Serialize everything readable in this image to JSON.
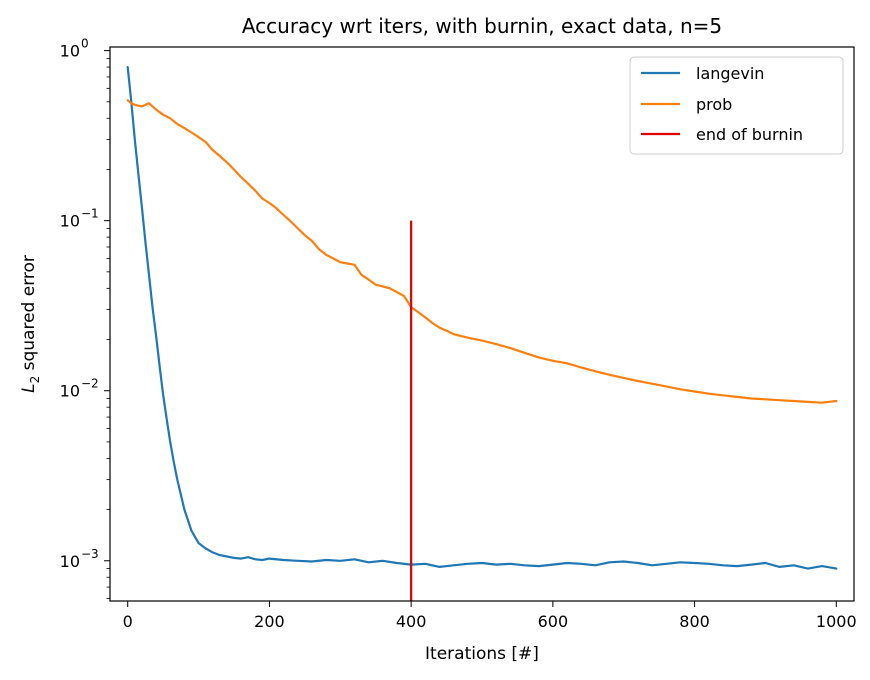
{
  "chart_data": {
    "type": "line",
    "title": "Accuracy wrt iters, with burnin, exact data, n=5",
    "xlabel": "Iterations [#]",
    "ylabel": "L2 squared error",
    "ylabel_main": "L",
    "ylabel_sub": "2",
    "ylabel_rest": " squared error",
    "yscale": "log",
    "xlim": [
      -25,
      1025
    ],
    "ylim": [
      0.00058,
      1.05
    ],
    "xticks": [
      0,
      200,
      400,
      600,
      800,
      1000
    ],
    "xtick_labels": [
      "0",
      "200",
      "400",
      "600",
      "800",
      "1000"
    ],
    "yticks": [
      0.001,
      0.01,
      0.1,
      1
    ],
    "ytick_labels_base": [
      "10",
      "10",
      "10",
      "10"
    ],
    "ytick_labels_exp": [
      "−3",
      "−2",
      "−1",
      "0"
    ],
    "legend_position": "top-right",
    "grid": false,
    "series": [
      {
        "name": "langevin",
        "color": "#1f77b4",
        "x": [
          0,
          5,
          10,
          15,
          20,
          25,
          30,
          35,
          40,
          45,
          50,
          55,
          60,
          65,
          70,
          80,
          90,
          100,
          110,
          120,
          130,
          140,
          150,
          160,
          170,
          180,
          190,
          200,
          220,
          240,
          260,
          280,
          300,
          320,
          340,
          360,
          380,
          400,
          420,
          440,
          460,
          480,
          500,
          520,
          540,
          560,
          580,
          600,
          620,
          640,
          660,
          680,
          700,
          720,
          740,
          760,
          780,
          800,
          820,
          840,
          860,
          880,
          900,
          920,
          940,
          960,
          980,
          1000
        ],
        "y": [
          0.8,
          0.5,
          0.3,
          0.19,
          0.12,
          0.075,
          0.048,
          0.031,
          0.021,
          0.014,
          0.0095,
          0.0068,
          0.005,
          0.0038,
          0.003,
          0.002,
          0.0015,
          0.00127,
          0.00118,
          0.00112,
          0.00108,
          0.00106,
          0.00104,
          0.00103,
          0.00105,
          0.00102,
          0.00101,
          0.00103,
          0.00101,
          0.001,
          0.00099,
          0.00101,
          0.001,
          0.00102,
          0.00098,
          0.001,
          0.00097,
          0.00095,
          0.00096,
          0.00092,
          0.00094,
          0.00096,
          0.00097,
          0.00095,
          0.00096,
          0.00094,
          0.00093,
          0.00095,
          0.00097,
          0.00096,
          0.00094,
          0.00098,
          0.00099,
          0.00097,
          0.00094,
          0.00096,
          0.00098,
          0.00097,
          0.00096,
          0.00094,
          0.00093,
          0.00095,
          0.00097,
          0.00092,
          0.00094,
          0.0009,
          0.00093,
          0.0009
        ]
      },
      {
        "name": "prob",
        "color": "#ff7f0e",
        "x": [
          0,
          5,
          10,
          20,
          30,
          40,
          50,
          60,
          70,
          80,
          90,
          100,
          110,
          120,
          130,
          140,
          150,
          160,
          170,
          180,
          190,
          200,
          210,
          220,
          230,
          240,
          250,
          260,
          270,
          280,
          290,
          300,
          310,
          320,
          330,
          340,
          350,
          360,
          370,
          380,
          390,
          400,
          410,
          420,
          430,
          440,
          450,
          460,
          480,
          500,
          520,
          540,
          560,
          580,
          600,
          620,
          640,
          660,
          680,
          700,
          720,
          740,
          760,
          780,
          800,
          820,
          840,
          860,
          880,
          900,
          920,
          940,
          960,
          980,
          1000
        ],
        "y": [
          0.51,
          0.49,
          0.48,
          0.47,
          0.49,
          0.45,
          0.42,
          0.4,
          0.37,
          0.35,
          0.33,
          0.31,
          0.29,
          0.26,
          0.24,
          0.22,
          0.2,
          0.18,
          0.165,
          0.15,
          0.135,
          0.127,
          0.118,
          0.108,
          0.099,
          0.09,
          0.082,
          0.076,
          0.068,
          0.063,
          0.06,
          0.057,
          0.056,
          0.055,
          0.048,
          0.045,
          0.042,
          0.041,
          0.04,
          0.038,
          0.036,
          0.031,
          0.029,
          0.027,
          0.025,
          0.0235,
          0.0225,
          0.0215,
          0.0205,
          0.0197,
          0.0188,
          0.0178,
          0.0167,
          0.0157,
          0.015,
          0.0145,
          0.0137,
          0.013,
          0.0124,
          0.0119,
          0.0114,
          0.011,
          0.0106,
          0.0102,
          0.0099,
          0.0096,
          0.0094,
          0.0092,
          0.009,
          0.0089,
          0.0088,
          0.0087,
          0.0086,
          0.0085,
          0.0087
        ]
      }
    ],
    "vline": {
      "name": "end of burnin",
      "color": "#e00000",
      "x": 400,
      "ymin": 0.00058,
      "ymax": 0.1
    }
  }
}
